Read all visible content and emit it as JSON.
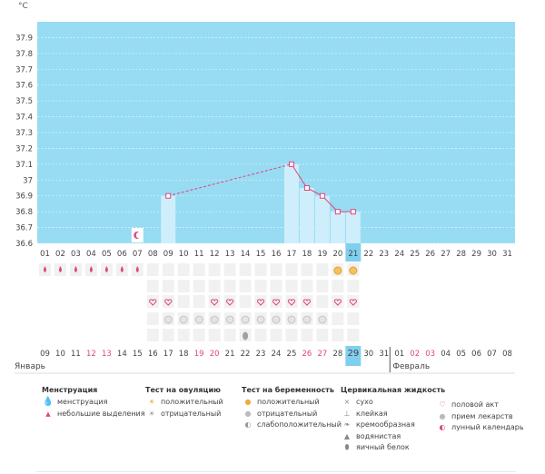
{
  "unit": "°C",
  "colors": {
    "plot_bg": "#97dcf3",
    "bar": "#cfeefb",
    "line": "#e0457b",
    "weekend": "#e0457b",
    "today_bg": "#7fd0ee",
    "cell_bg": "#f1f1f1"
  },
  "chart_data": {
    "type": "bar",
    "title": "",
    "xlabel": "",
    "ylabel": "°C",
    "ylim": [
      36.6,
      38.0
    ],
    "yticks": [
      "36.6",
      "36.7",
      "36.8",
      "36.9",
      "37",
      "37.1",
      "37.2",
      "37.3",
      "37.4",
      "37.5",
      "37.6",
      "37.7",
      "37.8",
      "37.9"
    ],
    "cycle_days": [
      "01",
      "02",
      "03",
      "04",
      "05",
      "06",
      "07",
      "08",
      "09",
      "10",
      "11",
      "12",
      "13",
      "14",
      "15",
      "16",
      "17",
      "18",
      "19",
      "20",
      "21",
      "22",
      "23",
      "24",
      "25",
      "26",
      "27",
      "28",
      "29",
      "30",
      "31"
    ],
    "today_cycle_day": "21",
    "values": [
      null,
      null,
      null,
      null,
      null,
      null,
      null,
      null,
      36.9,
      null,
      null,
      null,
      null,
      null,
      null,
      null,
      37.1,
      36.95,
      36.9,
      36.8,
      36.8,
      null,
      null,
      null,
      null,
      null,
      null,
      null,
      null,
      null,
      null
    ],
    "grid": true,
    "dashed_connectors": [
      [
        9,
        17
      ]
    ]
  },
  "rows": {
    "menstruation_days": [
      1,
      2,
      3,
      4,
      5,
      6,
      7
    ],
    "moon_day": 7,
    "ovulation_positive_days": [
      20,
      21
    ],
    "intercourse_days": [
      8,
      9,
      12,
      13,
      15,
      16,
      17,
      18,
      20,
      21
    ],
    "medication_days": [
      9,
      10,
      11,
      12,
      13,
      14,
      15,
      16,
      17,
      18,
      19
    ],
    "egg_white_days": [
      14
    ],
    "row_cell_days": [
      8,
      9,
      10,
      11,
      12,
      13,
      14,
      15,
      16,
      17,
      18,
      19,
      20,
      21
    ]
  },
  "calendar": {
    "dates": [
      "09",
      "10",
      "11",
      "12",
      "13",
      "14",
      "15",
      "16",
      "17",
      "18",
      "19",
      "20",
      "21",
      "22",
      "23",
      "24",
      "25",
      "26",
      "27",
      "28",
      "29",
      "30",
      "31",
      "01",
      "02",
      "03",
      "04",
      "05",
      "06",
      "07",
      "08"
    ],
    "weekend_indices": [
      3,
      4,
      10,
      11,
      17,
      18,
      24,
      25
    ],
    "today_index": 20,
    "month_start": "Январь",
    "month_next": "Февраль",
    "month_next_index": 23
  },
  "legend": {
    "menstruation": {
      "title": "Менструация",
      "items": [
        "менструация",
        "небольшие выделения"
      ]
    },
    "ovulation": {
      "title": "Тест на овуляцию",
      "items": [
        "положительный",
        "отрицательный"
      ]
    },
    "pregnancy": {
      "title": "Тест на беременность",
      "items": [
        "положительный",
        "отрицательный",
        "слабоположительный"
      ]
    },
    "cervical": {
      "title": "Цервикальная жидкость",
      "items": [
        "сухо",
        "клейкая",
        "кремообразная",
        "водянистая",
        "яичный белок"
      ]
    },
    "other": {
      "items": [
        "половой акт",
        "прием лекарств",
        "лунный календарь"
      ]
    }
  }
}
